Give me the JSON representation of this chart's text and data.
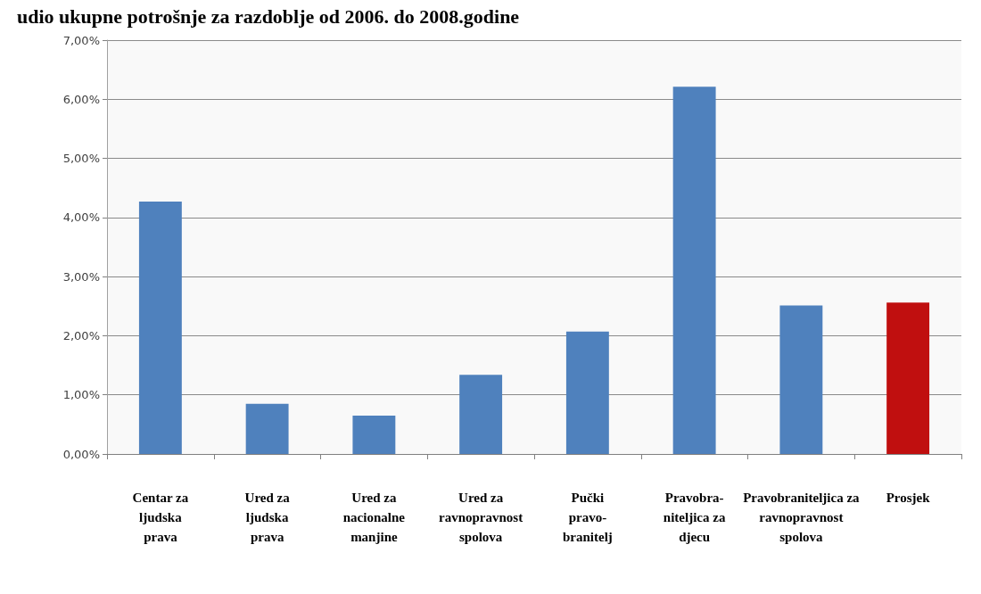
{
  "chart_data": {
    "type": "bar",
    "title": "udio ukupne potrošnje za razdoblje od 2006. do 2008.godine",
    "categories": [
      "Centar za\nljudska\nprava",
      "Ured za\nljudska\nprava",
      "Ured za\nnacionalne\nmanjine",
      "Ured za\nravnopravnost\nspolova",
      "Pučki\npravo-\nbranitelj",
      "Pravobra-\nniteljica za\ndjecu",
      "Pravobraniteljica za\nravnopravnost\nspolova",
      "Prosjek"
    ],
    "values": [
      4.27,
      0.85,
      0.65,
      1.34,
      2.07,
      6.21,
      2.51,
      2.56
    ],
    "colors": [
      "#4f81bd",
      "#4f81bd",
      "#4f81bd",
      "#4f81bd",
      "#4f81bd",
      "#4f81bd",
      "#4f81bd",
      "#c00f0f"
    ],
    "ylim": [
      0,
      7
    ],
    "yticks": [
      {
        "value": 0,
        "label": "0,00%"
      },
      {
        "value": 1,
        "label": "1,00%"
      },
      {
        "value": 2,
        "label": "2,00%"
      },
      {
        "value": 3,
        "label": "3,00%"
      },
      {
        "value": 4,
        "label": "4,00%"
      },
      {
        "value": 5,
        "label": "5,00%"
      },
      {
        "value": 6,
        "label": "6,00%"
      },
      {
        "value": 7,
        "label": "7,00%"
      }
    ],
    "grid": "y"
  }
}
